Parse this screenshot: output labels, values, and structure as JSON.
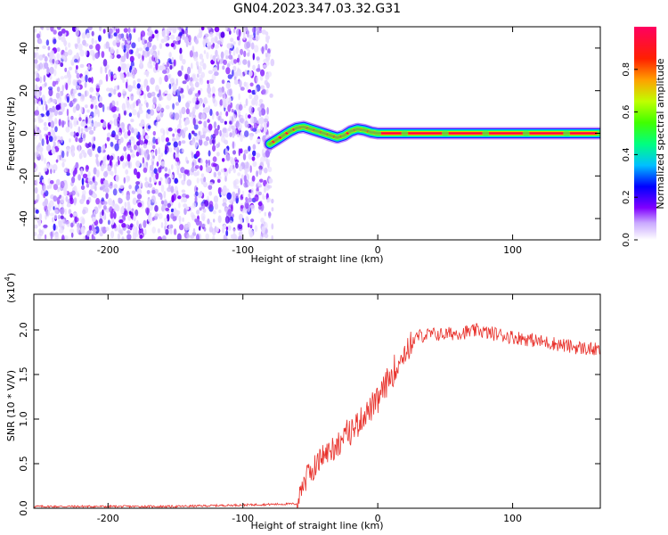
{
  "figure": {
    "title": "GN04.2023.347.03.32.G31"
  },
  "chart_data": [
    {
      "type": "heatmap",
      "xlabel": "Height of straight line (km)",
      "ylabel": "Frequency (Hz)",
      "xlim": [
        -255,
        165
      ],
      "ylim": [
        -50,
        50
      ],
      "xticks": [
        -200,
        -100,
        0,
        100
      ],
      "yticks": [
        -40,
        -20,
        0,
        20,
        40
      ],
      "colorbar": {
        "label": "Normalized spectral amplitude",
        "range": [
          0,
          1
        ],
        "ticks": [
          "0.0",
          "0.2",
          "0.4",
          "0.6",
          "0.8"
        ],
        "tick_values": [
          0,
          0.2,
          0.4,
          0.6,
          0.8
        ]
      },
      "noise_region_x": [
        -255,
        -78
      ],
      "signal_trace": {
        "x": [
          -80,
          -75,
          -70,
          -65,
          -60,
          -55,
          -50,
          -45,
          -40,
          -35,
          -30,
          -25,
          -20,
          -15,
          -10,
          -5,
          0,
          20,
          50,
          80,
          110,
          140,
          165
        ],
        "y": [
          -5,
          -3,
          -1,
          1,
          2.5,
          3,
          2,
          1,
          0,
          -1,
          -2,
          -1,
          1,
          2,
          1.5,
          0.5,
          0,
          0,
          0,
          0,
          0,
          0,
          0
        ]
      },
      "grid": false
    },
    {
      "type": "line",
      "xlabel": "Height of straight line (km)",
      "ylabel": "SNR (10 * V/V)",
      "y_multiplier": "(x10",
      "y_multiplier_exp": "4",
      "y_multiplier_close": ")",
      "xlim": [
        -255,
        165
      ],
      "ylim": [
        0,
        2.4
      ],
      "xticks": [
        -200,
        -100,
        0,
        100
      ],
      "yticks": [
        "0.0",
        "0.5",
        "1.0",
        "1.5",
        "2.0"
      ],
      "ytick_values": [
        0,
        0.5,
        1.0,
        1.5,
        2.0
      ],
      "series": [
        {
          "color": "#e8302a",
          "x": [
            -255,
            -150,
            -60,
            -58,
            -55,
            -50,
            -45,
            -40,
            -35,
            -30,
            -25,
            -20,
            -15,
            -10,
            -5,
            0,
            5,
            10,
            15,
            20,
            25,
            30,
            40,
            50,
            60,
            70,
            75,
            80,
            90,
            100,
            110,
            120,
            130,
            140,
            150,
            160,
            165
          ],
          "y": [
            0.02,
            0.02,
            0.05,
            0.2,
            0.3,
            0.4,
            0.5,
            0.6,
            0.65,
            0.72,
            0.8,
            0.87,
            0.95,
            1.05,
            1.12,
            1.2,
            1.35,
            1.5,
            1.62,
            1.75,
            1.85,
            1.93,
            1.95,
            1.95,
            1.97,
            1.98,
            2.0,
            1.97,
            1.95,
            1.92,
            1.9,
            1.87,
            1.85,
            1.82,
            1.8,
            1.78,
            1.77
          ]
        }
      ],
      "grid": false
    }
  ]
}
